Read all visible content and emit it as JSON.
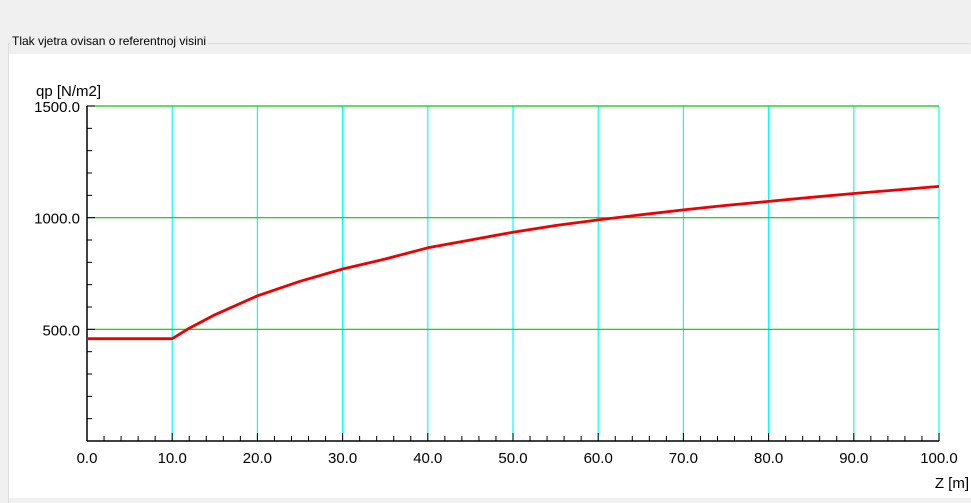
{
  "groupbox": {
    "title": "Tlak vjetra ovisan o referentnoj visini"
  },
  "colors": {
    "vertical_grid": "#00ffff",
    "horizontal_grid": "#00cc00",
    "series": "#ee0000",
    "axis": "#000000"
  },
  "chart_data": {
    "type": "line",
    "title": "",
    "xlabel": "Z [m]",
    "ylabel": "qp [N/m2]",
    "xlim": [
      0,
      100
    ],
    "ylim": [
      0,
      1500
    ],
    "x_ticks": [
      0,
      10,
      20,
      30,
      40,
      50,
      60,
      70,
      80,
      90,
      100
    ],
    "x_tick_labels": [
      "0.0",
      "10.0",
      "20.0",
      "30.0",
      "40.0",
      "50.0",
      "60.0",
      "70.0",
      "80.0",
      "90.0",
      "100.0"
    ],
    "y_ticks": [
      500,
      1000,
      1500
    ],
    "y_tick_labels": [
      "500.0",
      "1000.0",
      "1500.0"
    ],
    "horizontal_grid_values": [
      500,
      1000,
      1500
    ],
    "series": [
      {
        "color": "#ee0000",
        "x": [
          0,
          10,
          12,
          15,
          20,
          25,
          30,
          35,
          40,
          45,
          50,
          55,
          60,
          65,
          70,
          75,
          80,
          85,
          90,
          95,
          100
        ],
        "y": [
          458,
          458,
          505,
          565,
          650,
          715,
          770,
          815,
          865,
          900,
          935,
          965,
          990,
          1013,
          1035,
          1055,
          1073,
          1091,
          1108,
          1124,
          1140
        ]
      }
    ]
  }
}
